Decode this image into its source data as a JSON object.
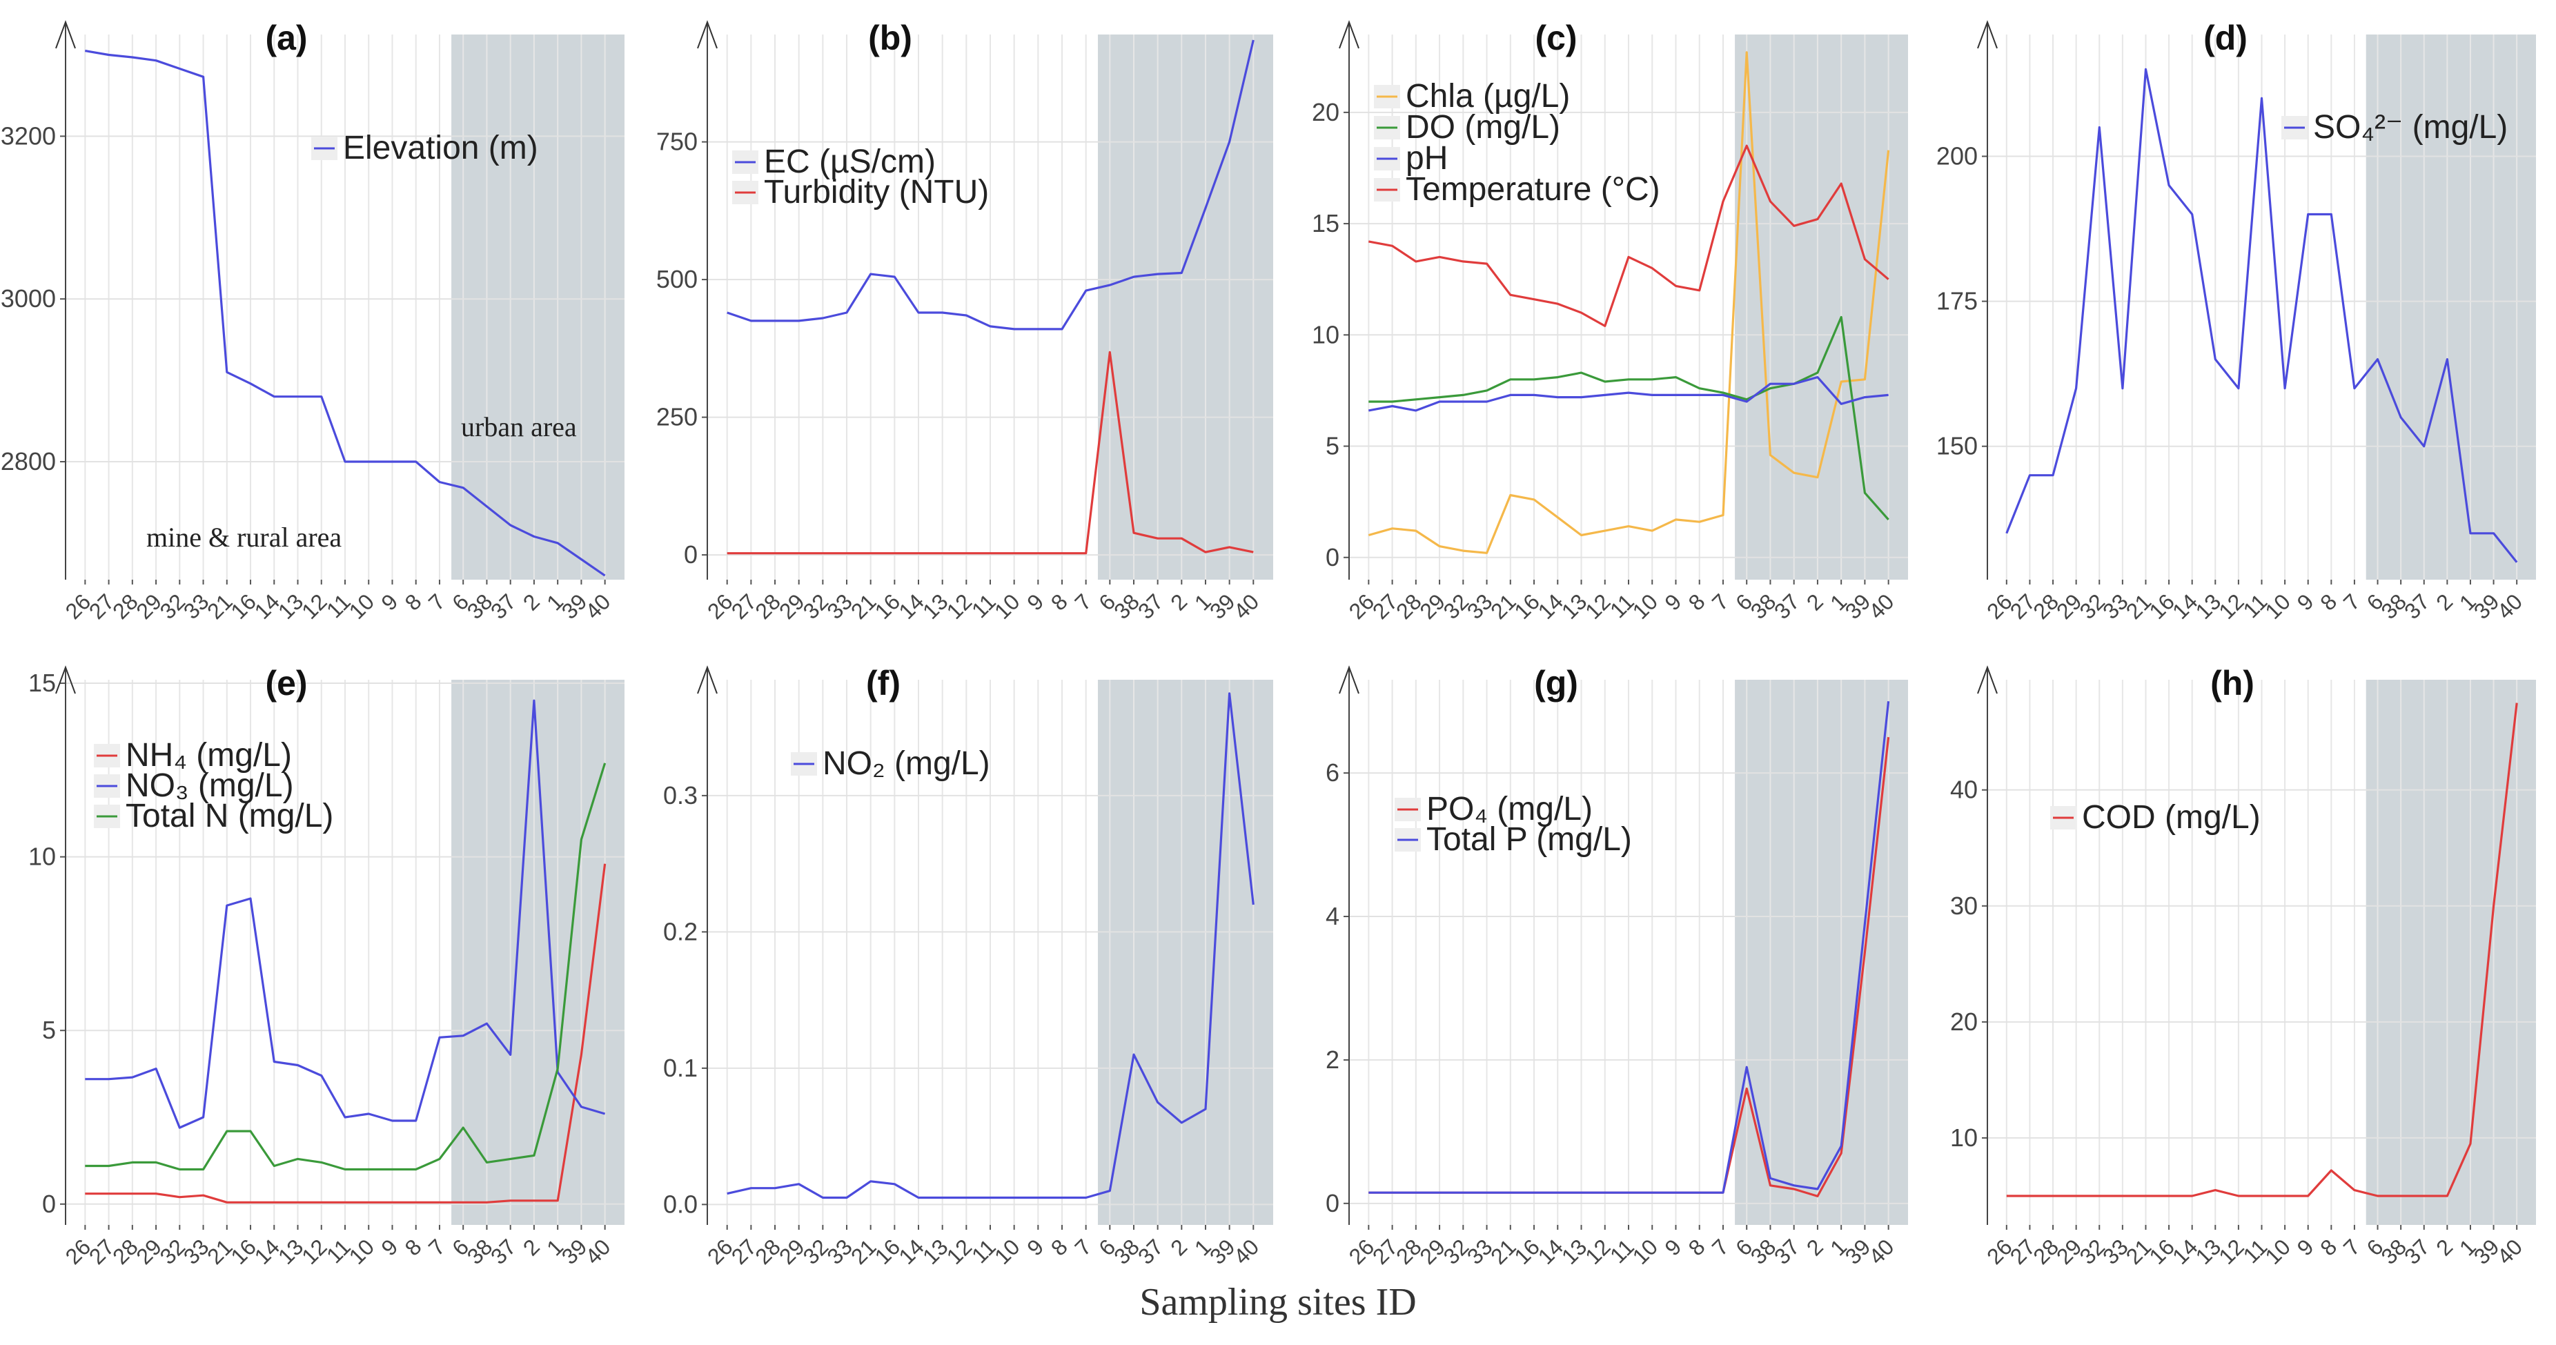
{
  "xlabel": "Sampling sites ID",
  "annotations": {
    "mine": "mine & rural area",
    "urban": "urban area"
  },
  "chart_data": [
    {
      "id": "a",
      "title": "(a)",
      "type": "line",
      "ylim": [
        2655,
        3325
      ],
      "yticks": [
        2800,
        3000,
        3200
      ],
      "categories": [
        "26",
        "27",
        "28",
        "29",
        "32",
        "33",
        "21",
        "16",
        "14",
        "13",
        "12",
        "11",
        "10",
        "9",
        "8",
        "7",
        "6",
        "38",
        "37",
        "2",
        "1",
        "39",
        "40"
      ],
      "urban_start": 15.5,
      "series": [
        {
          "name": "Elevation (m)",
          "color": "#4b4bdc",
          "values": [
            3305,
            3300,
            3297,
            3293,
            3283,
            3273,
            2910,
            2896,
            2880,
            2880,
            2880,
            2800,
            2800,
            2800,
            2800,
            2775,
            2768,
            2745,
            2722,
            2708,
            2700,
            2680,
            2660
          ]
        }
      ]
    },
    {
      "id": "b",
      "title": "(b)",
      "type": "line",
      "ylim": [
        -45,
        945
      ],
      "yticks": [
        0,
        250,
        500,
        750
      ],
      "categories": [
        "26",
        "27",
        "28",
        "29",
        "32",
        "33",
        "21",
        "16",
        "14",
        "13",
        "12",
        "11",
        "10",
        "9",
        "8",
        "7",
        "6",
        "38",
        "37",
        "2",
        "1",
        "39",
        "40"
      ],
      "urban_start": 15.5,
      "series": [
        {
          "name": "EC (µS/cm)",
          "color": "#4b4bdc",
          "values": [
            440,
            425,
            425,
            425,
            430,
            440,
            510,
            505,
            440,
            440,
            435,
            415,
            410,
            410,
            410,
            480,
            490,
            505,
            510,
            512,
            630,
            750,
            935
          ]
        },
        {
          "name": "Turbidity (NTU)",
          "color": "#e03c3c",
          "values": [
            3,
            3,
            3,
            3,
            3,
            3,
            3,
            3,
            3,
            3,
            3,
            3,
            3,
            3,
            3,
            3,
            368,
            40,
            30,
            30,
            5,
            14,
            5
          ]
        }
      ]
    },
    {
      "id": "c",
      "title": "(c)",
      "type": "line",
      "ylim": [
        -1,
        23.5
      ],
      "yticks": [
        0,
        5,
        10,
        15,
        20
      ],
      "categories": [
        "26",
        "27",
        "28",
        "29",
        "32",
        "33",
        "21",
        "16",
        "14",
        "13",
        "12",
        "11",
        "10",
        "9",
        "8",
        "7",
        "6",
        "38",
        "37",
        "2",
        "1",
        "39",
        "40"
      ],
      "urban_start": 15.5,
      "series": [
        {
          "name": "Chla (µg/L)",
          "color": "#f5b84a",
          "values": [
            1.0,
            1.3,
            1.2,
            0.5,
            0.3,
            0.2,
            2.8,
            2.6,
            1.8,
            1.0,
            1.2,
            1.4,
            1.2,
            1.7,
            1.6,
            1.9,
            22.7,
            4.6,
            3.8,
            3.6,
            7.9,
            8.0,
            18.3
          ]
        },
        {
          "name": "DO (mg/L)",
          "color": "#3a9a3a",
          "values": [
            7.0,
            7.0,
            7.1,
            7.2,
            7.3,
            7.5,
            8.0,
            8.0,
            8.1,
            8.3,
            7.9,
            8.0,
            8.0,
            8.1,
            7.6,
            7.4,
            7.1,
            7.6,
            7.8,
            8.3,
            10.8,
            2.9,
            1.7
          ]
        },
        {
          "name": "pH",
          "color": "#4b4bdc",
          "values": [
            6.6,
            6.8,
            6.6,
            7.0,
            7.0,
            7.0,
            7.3,
            7.3,
            7.2,
            7.2,
            7.3,
            7.4,
            7.3,
            7.3,
            7.3,
            7.3,
            7.0,
            7.8,
            7.8,
            8.1,
            6.9,
            7.2,
            7.3
          ]
        },
        {
          "name": "Temperature (°C)",
          "color": "#e03c3c",
          "values": [
            14.2,
            14.0,
            13.3,
            13.5,
            13.3,
            13.2,
            11.8,
            11.6,
            11.4,
            11.0,
            10.4,
            13.5,
            13.0,
            12.2,
            12.0,
            16.0,
            18.5,
            16.0,
            14.9,
            15.2,
            16.8,
            13.4,
            12.5
          ]
        }
      ]
    },
    {
      "id": "d",
      "title": "(d)",
      "type": "line",
      "ylim": [
        127,
        221
      ],
      "yticks": [
        150,
        175,
        200
      ],
      "categories": [
        "26",
        "27",
        "28",
        "29",
        "32",
        "33",
        "21",
        "16",
        "14",
        "13",
        "12",
        "11",
        "10",
        "9",
        "8",
        "7",
        "6",
        "38",
        "37",
        "2",
        "1",
        "39",
        "40"
      ],
      "urban_start": 15.5,
      "series": [
        {
          "name": "SO₄²⁻ (mg/L)",
          "color": "#4b4bdc",
          "values": [
            135,
            145,
            145,
            160,
            205,
            160,
            215,
            195,
            190,
            165,
            160,
            210,
            160,
            190,
            190,
            160,
            165,
            155,
            150,
            165,
            135,
            135,
            130
          ]
        }
      ]
    },
    {
      "id": "e",
      "title": "(e)",
      "type": "line",
      "ylim": [
        -0.6,
        15.1
      ],
      "yticks": [
        0,
        5,
        10,
        15
      ],
      "categories": [
        "26",
        "27",
        "28",
        "29",
        "32",
        "33",
        "21",
        "16",
        "14",
        "13",
        "12",
        "11",
        "10",
        "9",
        "8",
        "7",
        "6",
        "38",
        "37",
        "2",
        "1",
        "39",
        "40"
      ],
      "urban_start": 15.5,
      "series": [
        {
          "name": "NH₄ (mg/L)",
          "color": "#e03c3c",
          "values": [
            0.3,
            0.3,
            0.3,
            0.3,
            0.2,
            0.25,
            0.05,
            0.05,
            0.05,
            0.05,
            0.05,
            0.05,
            0.05,
            0.05,
            0.05,
            0.05,
            0.05,
            0.05,
            0.1,
            0.1,
            0.1,
            4.3,
            9.8
          ]
        },
        {
          "name": "NO₃ (mg/L)",
          "color": "#4b4bdc",
          "values": [
            3.6,
            3.6,
            3.65,
            3.9,
            2.2,
            2.5,
            8.6,
            8.8,
            4.1,
            4.0,
            3.7,
            2.5,
            2.6,
            2.4,
            2.4,
            4.8,
            4.85,
            5.2,
            4.3,
            14.5,
            3.8,
            2.8,
            2.6
          ]
        },
        {
          "name": "Total N (mg/L)",
          "color": "#3a9a3a",
          "values": [
            1.1,
            1.1,
            1.2,
            1.2,
            1.0,
            1.0,
            2.1,
            2.1,
            1.1,
            1.3,
            1.2,
            1.0,
            1.0,
            1.0,
            1.0,
            1.3,
            2.2,
            1.2,
            1.3,
            1.4,
            3.9,
            10.5,
            12.7
          ]
        }
      ]
    },
    {
      "id": "f",
      "title": "(f)",
      "type": "line",
      "ylim": [
        -0.015,
        0.385
      ],
      "yticks": [
        0.0,
        0.1,
        0.2,
        0.3
      ],
      "categories": [
        "26",
        "27",
        "28",
        "29",
        "32",
        "33",
        "21",
        "16",
        "14",
        "13",
        "12",
        "11",
        "10",
        "9",
        "8",
        "7",
        "6",
        "38",
        "37",
        "2",
        "1",
        "39",
        "40"
      ],
      "urban_start": 15.5,
      "series": [
        {
          "name": "NO₂ (mg/L)",
          "color": "#4b4bdc",
          "values": [
            0.008,
            0.012,
            0.012,
            0.015,
            0.005,
            0.005,
            0.017,
            0.015,
            0.005,
            0.005,
            0.005,
            0.005,
            0.005,
            0.005,
            0.005,
            0.005,
            0.01,
            0.11,
            0.075,
            0.06,
            0.07,
            0.375,
            0.22
          ]
        }
      ]
    },
    {
      "id": "g",
      "title": "(g)",
      "type": "line",
      "ylim": [
        -0.3,
        7.3
      ],
      "yticks": [
        0,
        2,
        4,
        6
      ],
      "categories": [
        "26",
        "27",
        "28",
        "29",
        "32",
        "33",
        "21",
        "16",
        "14",
        "13",
        "12",
        "11",
        "10",
        "9",
        "8",
        "7",
        "6",
        "38",
        "37",
        "2",
        "1",
        "39",
        "40"
      ],
      "urban_start": 15.5,
      "series": [
        {
          "name": "PO₄ (mg/L)",
          "color": "#e03c3c",
          "values": [
            0.15,
            0.15,
            0.15,
            0.15,
            0.15,
            0.15,
            0.15,
            0.15,
            0.15,
            0.15,
            0.15,
            0.15,
            0.15,
            0.15,
            0.15,
            0.15,
            1.6,
            0.25,
            0.2,
            0.1,
            0.7,
            3.5,
            6.5
          ]
        },
        {
          "name": "Total P (mg/L)",
          "color": "#4b4bdc",
          "values": [
            0.15,
            0.15,
            0.15,
            0.15,
            0.15,
            0.15,
            0.15,
            0.15,
            0.15,
            0.15,
            0.15,
            0.15,
            0.15,
            0.15,
            0.15,
            0.15,
            1.9,
            0.35,
            0.25,
            0.2,
            0.8,
            3.9,
            7.0
          ]
        }
      ]
    },
    {
      "id": "h",
      "title": "(h)",
      "type": "line",
      "ylim": [
        2.5,
        49.5
      ],
      "yticks": [
        10,
        20,
        30,
        40
      ],
      "categories": [
        "26",
        "27",
        "28",
        "29",
        "32",
        "33",
        "21",
        "16",
        "14",
        "13",
        "12",
        "11",
        "10",
        "9",
        "8",
        "7",
        "6",
        "38",
        "37",
        "2",
        "1",
        "39",
        "40"
      ],
      "urban_start": 15.5,
      "series": [
        {
          "name": "COD (mg/L)",
          "color": "#e03c3c",
          "values": [
            5,
            5,
            5,
            5,
            5,
            5,
            5,
            5,
            5,
            5.5,
            5,
            5,
            5,
            5,
            7.2,
            5.5,
            5,
            5,
            5,
            5,
            9.5,
            30,
            47.5
          ]
        }
      ]
    }
  ]
}
